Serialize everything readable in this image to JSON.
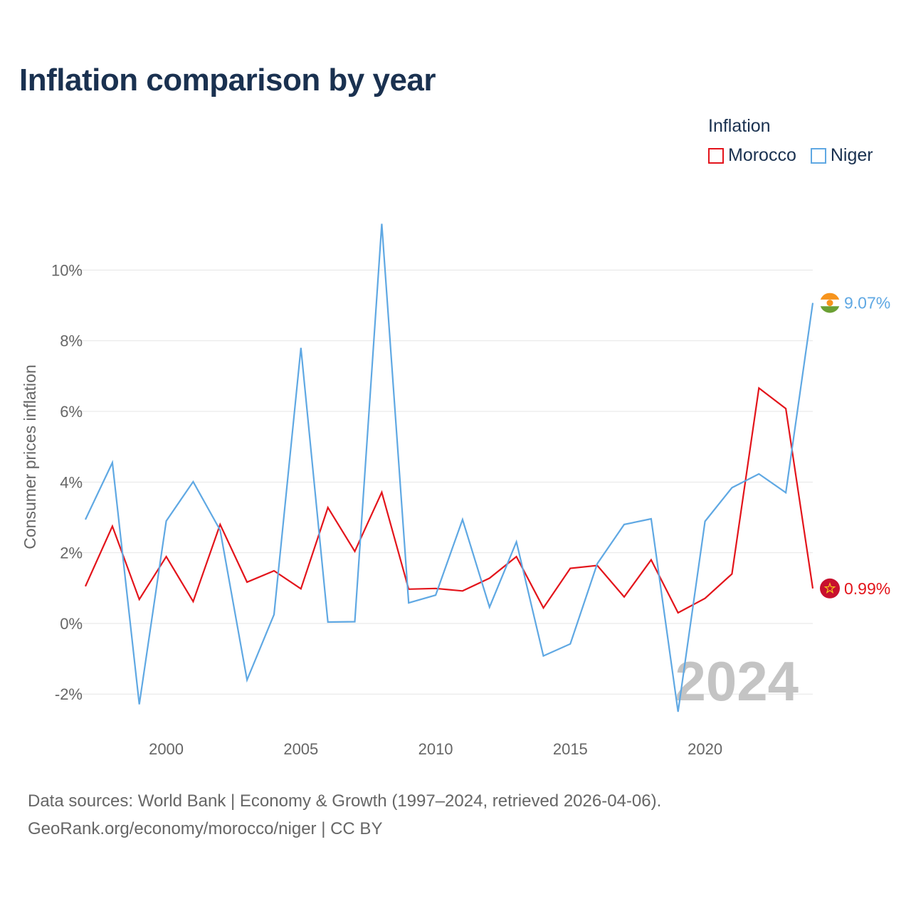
{
  "title": "Inflation comparison by year",
  "legend": {
    "title": "Inflation",
    "items": [
      {
        "label": "Morocco",
        "color": "#e3141b"
      },
      {
        "label": "Niger",
        "color": "#5fa8e3"
      }
    ]
  },
  "footer": {
    "line1": "Data sources: World Bank | Economy & Growth (1997–2024, retrieved 2026-04-06).",
    "line2": "GeoRank.org/economy/morocco/niger | CC BY"
  },
  "chart_data": {
    "type": "line",
    "title": "Inflation comparison by year",
    "xlabel": "",
    "ylabel": "Consumer prices inflation",
    "x": [
      1997,
      1998,
      1999,
      2000,
      2001,
      2002,
      2003,
      2004,
      2005,
      2006,
      2007,
      2008,
      2009,
      2010,
      2011,
      2012,
      2013,
      2014,
      2015,
      2016,
      2017,
      2018,
      2019,
      2020,
      2021,
      2022,
      2023,
      2024
    ],
    "xlim": [
      1997,
      2024
    ],
    "ylim": [
      -2.7,
      11.6
    ],
    "x_ticks": [
      2000,
      2005,
      2010,
      2015,
      2020
    ],
    "y_ticks": [
      -2,
      0,
      2,
      4,
      6,
      8,
      10
    ],
    "y_tick_labels": [
      "-2%",
      "0%",
      "2%",
      "4%",
      "6%",
      "8%",
      "10%"
    ],
    "grid": true,
    "watermark": "2024",
    "series": [
      {
        "name": "Morocco",
        "color": "#e3141b",
        "values": [
          1.05,
          2.75,
          0.68,
          1.89,
          0.62,
          2.8,
          1.17,
          1.49,
          0.98,
          3.28,
          2.04,
          3.71,
          0.97,
          0.99,
          0.92,
          1.28,
          1.89,
          0.44,
          1.56,
          1.64,
          0.75,
          1.8,
          0.3,
          0.71,
          1.4,
          6.66,
          6.08,
          0.99
        ],
        "end_label": "0.99%"
      },
      {
        "name": "Niger",
        "color": "#5fa8e3",
        "values": [
          2.94,
          4.55,
          -2.29,
          2.9,
          4.01,
          2.64,
          -1.6,
          0.25,
          7.8,
          0.04,
          0.05,
          11.31,
          0.58,
          0.8,
          2.94,
          0.46,
          2.31,
          -0.92,
          -0.58,
          1.69,
          2.8,
          2.96,
          -2.5,
          2.89,
          3.84,
          4.23,
          3.7,
          9.07
        ],
        "end_label": "9.07%"
      }
    ]
  }
}
